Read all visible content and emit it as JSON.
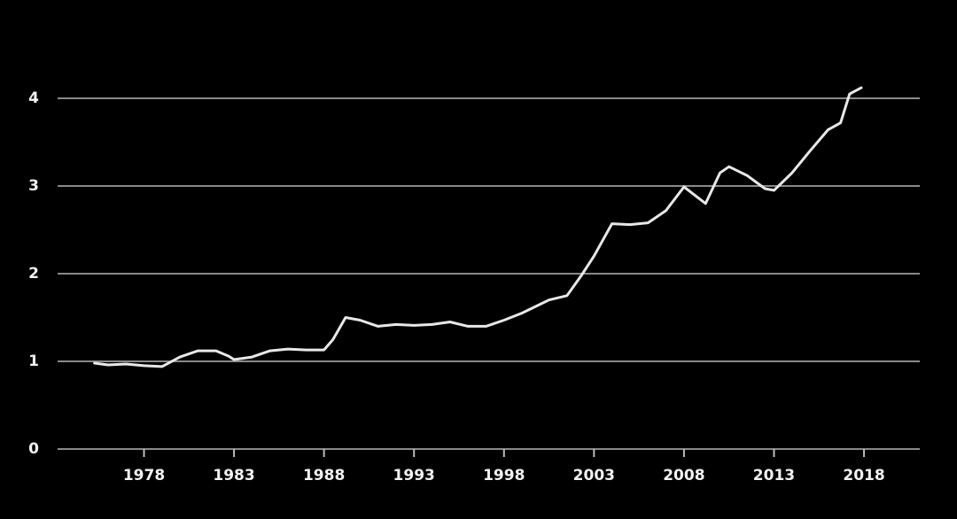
{
  "chart_data": {
    "type": "line",
    "x": [
      1975.25,
      1976,
      1977,
      1978,
      1979,
      1980,
      1981,
      1982,
      1982.7,
      1983,
      1984,
      1985,
      1986,
      1987,
      1988,
      1988.5,
      1989.2,
      1990,
      1991,
      1992,
      1993,
      1994,
      1995,
      1996,
      1997,
      1998,
      1999,
      2000,
      2000.5,
      2001.5,
      2002.3,
      2003,
      2004,
      2005,
      2006,
      2007,
      2008,
      2008.7,
      2009.2,
      2010,
      2010.5,
      2011.5,
      2012.5,
      2013,
      2014,
      2015,
      2016,
      2016.7,
      2017.2,
      2017.85
    ],
    "values": [
      0.98,
      0.96,
      0.97,
      0.95,
      0.94,
      1.05,
      1.12,
      1.12,
      1.06,
      1.02,
      1.05,
      1.12,
      1.14,
      1.13,
      1.13,
      1.25,
      1.5,
      1.47,
      1.4,
      1.42,
      1.41,
      1.42,
      1.45,
      1.4,
      1.4,
      1.47,
      1.55,
      1.65,
      1.7,
      1.75,
      1.98,
      2.2,
      2.57,
      2.56,
      2.58,
      2.72,
      2.99,
      2.88,
      2.8,
      3.15,
      3.22,
      3.12,
      2.97,
      2.95,
      3.15,
      3.4,
      3.64,
      3.72,
      4.05,
      4.12
    ],
    "color": "#e8e8e8",
    "xlim": [
      1973.2,
      2021.1
    ],
    "xticks": [
      1978,
      1983,
      1988,
      1993,
      1998,
      2003,
      2008,
      2013,
      2018
    ],
    "ylim": [
      0,
      4
    ],
    "yticks": [
      0,
      1,
      2,
      3,
      4
    ],
    "grid": true
  }
}
